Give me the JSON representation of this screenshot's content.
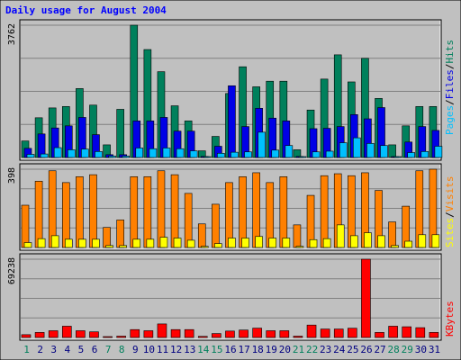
{
  "chart_data": {
    "type": "bar",
    "title": "Daily usage for August 2004",
    "categories": [
      "1",
      "2",
      "3",
      "4",
      "5",
      "6",
      "7",
      "8",
      "9",
      "10",
      "11",
      "12",
      "13",
      "14",
      "15",
      "16",
      "17",
      "18",
      "19",
      "20",
      "21",
      "22",
      "23",
      "24",
      "25",
      "26",
      "27",
      "28",
      "29",
      "30",
      "31"
    ],
    "weekend_days": [
      "1",
      "7",
      "8",
      "14",
      "15",
      "21",
      "22",
      "28",
      "29"
    ],
    "panels": [
      {
        "name": "pages-files-hits",
        "ymax_label": "3762",
        "ymax": 3762,
        "grid": true,
        "series": [
          {
            "name": "Hits",
            "color": "#00805c",
            "values": [
              470,
              1130,
              1410,
              1450,
              1960,
              1490,
              360,
              1370,
              3762,
              3070,
              2440,
              1470,
              1040,
              190,
              600,
              1820,
              2580,
              2010,
              2170,
              2170,
              220,
              1350,
              2230,
              2920,
              2150,
              2820,
              1680,
              360,
              900,
              1450,
              1450
            ]
          },
          {
            "name": "Files",
            "color": "#0000e6",
            "values": [
              260,
              670,
              840,
              900,
              1140,
              650,
              80,
              80,
              1040,
              1040,
              1140,
              750,
              750,
              30,
              320,
              2040,
              880,
              1400,
              1120,
              1040,
              30,
              820,
              830,
              880,
              1220,
              1100,
              1420,
              20,
              440,
              880,
              770
            ]
          },
          {
            "name": "Pages",
            "color": "#00c0ff",
            "values": [
              90,
              100,
              280,
              220,
              240,
              170,
              40,
              40,
              270,
              250,
              270,
              250,
              190,
              10,
              120,
              150,
              160,
              720,
              210,
              340,
              10,
              160,
              180,
              420,
              560,
              400,
              340,
              10,
              140,
              170,
              320
            ]
          }
        ]
      },
      {
        "name": "visits-sites",
        "ymax_label": "398",
        "ymax": 398,
        "grid": true,
        "series": [
          {
            "name": "Visits",
            "color": "#ff8000",
            "values": [
              215,
              337,
              390,
              330,
              360,
              370,
              102,
              140,
              360,
              360,
              390,
              370,
              275,
              120,
              220,
              330,
              360,
              380,
              330,
              360,
              115,
              265,
              365,
              375,
              365,
              380,
              290,
              130,
              210,
              390,
              398
            ]
          },
          {
            "name": "Sites",
            "color": "#ffff00",
            "values": [
              25,
              45,
              60,
              42,
              42,
              42,
              10,
              10,
              42,
              42,
              52,
              48,
              37,
              6,
              20,
              48,
              48,
              56,
              48,
              48,
              6,
              40,
              45,
              115,
              60,
              75,
              60,
              10,
              32,
              65,
              65
            ]
          }
        ]
      },
      {
        "name": "kbytes",
        "ymax_label": "69238",
        "ymax": 69238,
        "grid": true,
        "series": [
          {
            "name": "KBytes",
            "color": "#ff0000",
            "values": [
              2500,
              4500,
              6000,
              10000,
              6000,
              5000,
              800,
              1200,
              7000,
              6000,
              12000,
              7000,
              7000,
              1000,
              3500,
              5700,
              6600,
              8300,
              6000,
              6000,
              1200,
              11000,
              7500,
              7500,
              8200,
              69238,
              4500,
              10000,
              9500,
              8700,
              4500
            ]
          }
        ]
      }
    ],
    "right_labels": {
      "panel1": [
        "Pages",
        "/",
        "Files",
        "/",
        "Hits"
      ],
      "panel2": [
        "Sites",
        "/",
        "Visits"
      ],
      "panel3": [
        "KBytes"
      ]
    },
    "colors": {
      "background": "#c0c0c0",
      "plot": "#c0c0c0",
      "title": "#0000ff",
      "grid": "#808080",
      "weekday_label": "#000080",
      "weekend_label": "#00805c",
      "slash": "#000000"
    }
  }
}
